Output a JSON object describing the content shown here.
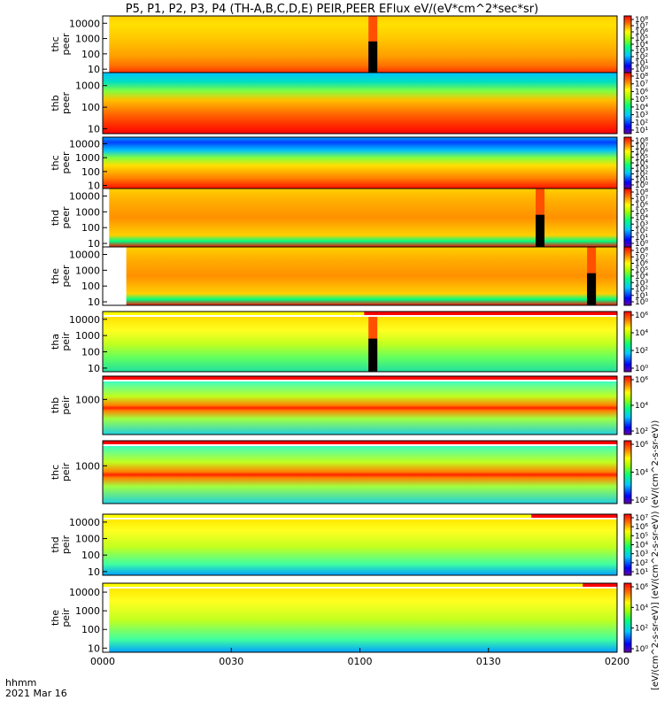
{
  "chart_data": {
    "type": "heatmap",
    "title": "P5, P1, P2, P3, P4 (TH-A,B,C,D,E) PEIR,PEER EFlux eV/(eV*cm^2*sec*sr)",
    "time_label_prefix": "hhmm",
    "date_label": "2021 Mar 16",
    "x_ticks": [
      "0000",
      "0030",
      "0100",
      "0130",
      "0200"
    ],
    "x_range_minutes": [
      0,
      120
    ],
    "colorbar_unit": "[eV/(cm^2-s-sr-eV)] (eV/(cm^2-s-sr-eV)) (eV/(cm^2-s-sr-eV))",
    "y_scale": "log",
    "panels": [
      {
        "label": "thc\npeer",
        "y_ticks": [
          "10",
          "100",
          "1000",
          "10000"
        ],
        "y_range": [
          6,
          30000
        ],
        "colorbar_ticks": [
          "10^0",
          "10^1",
          "10^2",
          "10^3",
          "10^4",
          "10^5",
          "10^6",
          "10^7",
          "10^8"
        ],
        "data_start_min": 1.5,
        "bands": "peer_thc_a",
        "gap_min": 62,
        "mode_bar": null
      },
      {
        "label": "thb\npeer",
        "y_ticks": [
          "10",
          "100",
          "1000"
        ],
        "y_range": [
          6,
          4000
        ],
        "colorbar_ticks": [
          "10^1",
          "10^2",
          "10^3",
          "10^4",
          "10^5",
          "10^6",
          "10^7",
          "10^8"
        ],
        "data_start_min": 0,
        "bands": "peer_hot",
        "gap_min": null,
        "mode_bar": null
      },
      {
        "label": "thc\npeer",
        "y_ticks": [
          "10",
          "100",
          "1000",
          "10000"
        ],
        "y_range": [
          6,
          30000
        ],
        "colorbar_ticks": [
          "10^0",
          "10^1",
          "10^2",
          "10^3",
          "10^4",
          "10^5",
          "10^6",
          "10^7",
          "10^8"
        ],
        "data_start_min": 0,
        "bands": "peer_thc_b",
        "gap_min": null,
        "mode_bar": null
      },
      {
        "label": "thd\npeer",
        "y_ticks": [
          "10",
          "100",
          "1000",
          "10000"
        ],
        "y_range": [
          6,
          30000
        ],
        "colorbar_ticks": [
          "10^0",
          "10^1",
          "10^2",
          "10^3",
          "10^4",
          "10^5",
          "10^6",
          "10^7",
          "10^8"
        ],
        "data_start_min": 1.5,
        "bands": "peer_warm",
        "gap_min": 101,
        "mode_bar": null
      },
      {
        "label": "the\npeer",
        "y_ticks": [
          "10",
          "100",
          "1000",
          "10000"
        ],
        "y_range": [
          6,
          30000
        ],
        "colorbar_ticks": [
          "10^0",
          "10^1",
          "10^2",
          "10^3",
          "10^4",
          "10^5",
          "10^6",
          "10^7",
          "10^8"
        ],
        "data_start_min": 5.5,
        "bands": "peer_warm",
        "gap_min": 113,
        "mode_bar": null
      },
      {
        "label": "tha\npeir",
        "y_ticks": [
          "10",
          "100",
          "1000",
          "10000"
        ],
        "y_range": [
          6,
          30000
        ],
        "colorbar_ticks": [
          "10^0",
          "10^2",
          "10^4",
          "10^6"
        ],
        "data_start_min": 0,
        "bands": "peir_a",
        "gap_min": 62,
        "mode_bar": [
          {
            "from": 0,
            "to": 61,
            "color": "#ffff00"
          },
          {
            "from": 61,
            "to": 120,
            "color": "#ff0000"
          }
        ]
      },
      {
        "label": "thb\npeir",
        "y_ticks": [
          "1000"
        ],
        "y_range": [
          6,
          30000
        ],
        "colorbar_ticks": [
          "10^2",
          "10^4",
          "10^6"
        ],
        "data_start_min": 0,
        "bands": "peir_bc",
        "gap_min": null,
        "mode_bar": [
          {
            "from": 0,
            "to": 120,
            "color": "#ff0000"
          }
        ]
      },
      {
        "label": "thc\npeir",
        "y_ticks": [
          "1000"
        ],
        "y_range": [
          6,
          30000
        ],
        "colorbar_ticks": [
          "10^2",
          "10^4",
          "10^6"
        ],
        "data_start_min": 0,
        "bands": "peir_bc",
        "gap_min": null,
        "mode_bar": [
          {
            "from": 0,
            "to": 120,
            "color": "#ff0000"
          }
        ]
      },
      {
        "label": "thd\npeir",
        "y_ticks": [
          "10",
          "100",
          "1000",
          "10000"
        ],
        "y_range": [
          6,
          30000
        ],
        "colorbar_ticks": [
          "10^1",
          "10^2",
          "10^3",
          "10^4",
          "10^5",
          "10^6",
          "10^7"
        ],
        "data_start_min": 0,
        "bands": "peir_de",
        "gap_min": null,
        "mode_bar": [
          {
            "from": 0,
            "to": 100,
            "color": "#ffff00"
          },
          {
            "from": 100,
            "to": 120,
            "color": "#ff0000"
          }
        ]
      },
      {
        "label": "the\npeir",
        "y_ticks": [
          "10",
          "100",
          "1000",
          "10000"
        ],
        "y_range": [
          6,
          30000
        ],
        "colorbar_ticks": [
          "10^0",
          "10^2",
          "10^4",
          "10^6"
        ],
        "data_start_min": 1.5,
        "bands": "peir_de",
        "gap_min": null,
        "mode_bar": [
          {
            "from": 0,
            "to": 112,
            "color": "#ffff00"
          },
          {
            "from": 112,
            "to": 120,
            "color": "#ff0000"
          }
        ]
      }
    ]
  }
}
